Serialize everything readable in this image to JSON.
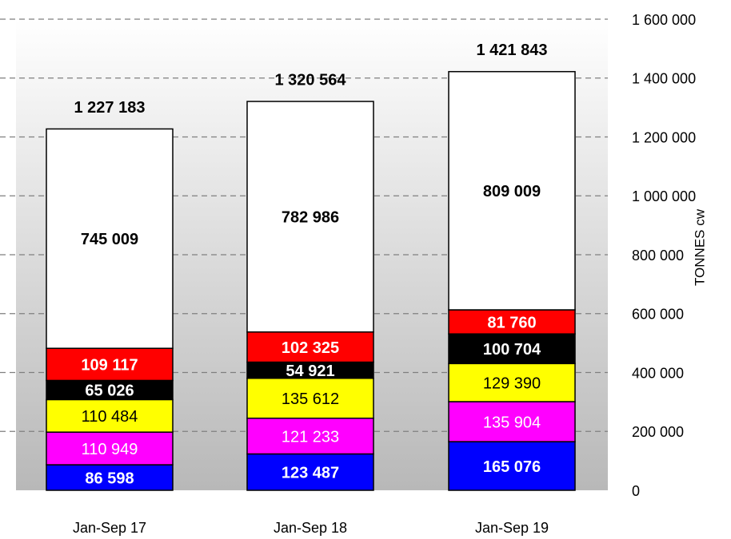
{
  "chart_data": {
    "type": "stacked_bar",
    "categories": [
      "Jan-Sep 17",
      "Jan-Sep 18",
      "Jan-Sep 19"
    ],
    "series": [
      {
        "color": "#0000ff",
        "label_color": "#ffffff",
        "values": [
          86598,
          123487,
          165076
        ],
        "value_labels": [
          "86 598",
          "123 487",
          "165 076"
        ]
      },
      {
        "color": "#ff00ff",
        "label_color": "#ffffff",
        "values": [
          110949,
          121233,
          135904
        ],
        "value_labels": [
          "110 949",
          "121 233",
          "135 904"
        ]
      },
      {
        "color": "#ffff00",
        "label_color": "#000000",
        "values": [
          110484,
          135612,
          129390
        ],
        "value_labels": [
          "110 484",
          "135 612",
          "129 390"
        ]
      },
      {
        "color": "#000000",
        "label_color": "#ffffff",
        "values": [
          65026,
          54921,
          100704
        ],
        "value_labels": [
          "65 026",
          "54 921",
          "100 704"
        ]
      },
      {
        "color": "#ff0000",
        "label_color": "#ffffff",
        "values": [
          109117,
          102325,
          81760
        ],
        "value_labels": [
          "109 117",
          "102 325",
          "81 760"
        ]
      },
      {
        "color": "#ffffff",
        "label_color": "#000000",
        "values": [
          745009,
          782986,
          809009
        ],
        "value_labels": [
          "745 009",
          "782 986",
          "809 009"
        ]
      }
    ],
    "totals": [
      1227183,
      1320564,
      1421843
    ],
    "total_labels": [
      "1 227 183",
      "1 320 564",
      "1 421 843"
    ],
    "y_label": "TONNES cw",
    "ylim": [
      0,
      1600000
    ],
    "yticks": [
      0,
      {
        "value": 200000,
        "label": "200 000"
      },
      {
        "value": 400000,
        "label": "400 000"
      },
      {
        "value": 600000,
        "label": "600 000"
      },
      {
        "value": 800000,
        "label": "800 000"
      },
      {
        "value": 1000000,
        "label": "1 000 000"
      },
      {
        "value": 1200000,
        "label": "1 200 000"
      },
      {
        "value": 1400000,
        "label": "1 400 000"
      },
      {
        "value": 1600000,
        "label": "1 600 000"
      }
    ],
    "grid": true,
    "y_axis_side": "right"
  }
}
